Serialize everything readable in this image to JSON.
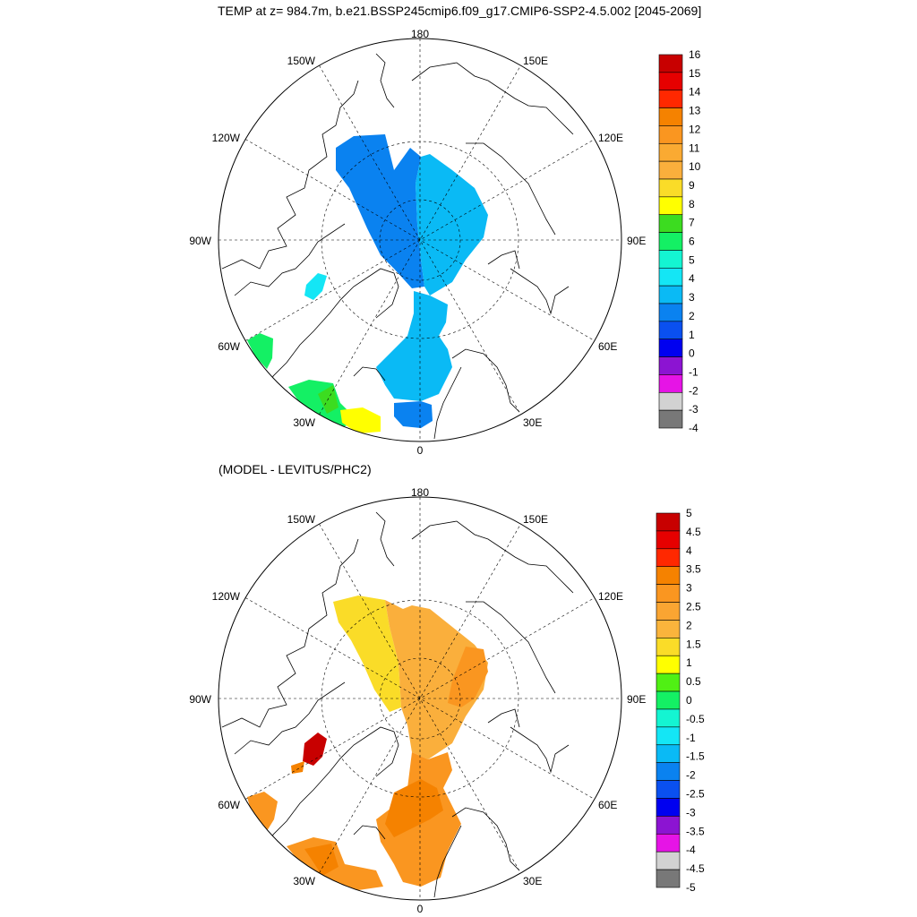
{
  "title": "TEMP at z= 984.7m, b.e21.BSSP245cmip6.f09_g17.CMIP6-SSP2-4.5.002 [2045-2069]",
  "subtitle": "(MODEL - LEVITUS/PHC2)",
  "longitude_labels": {
    "top": "180",
    "bottom": "0",
    "left": "90W",
    "right": "90E",
    "upper_left_outer": "150W",
    "upper_left_inner": "120W",
    "lower_left_inner": "60W",
    "lower_left_outer": "30W",
    "upper_right_outer": "150E",
    "upper_right_inner": "120E",
    "lower_right_inner": "60E",
    "lower_right_outer": "30E"
  },
  "colors": {
    "land_outline": "#000000",
    "grid": "#000000"
  },
  "panels": [
    {
      "name": "temperature-map",
      "colorbar": {
        "labels": [
          "16",
          "15",
          "14",
          "13",
          "12",
          "11",
          "10",
          "9",
          "8",
          "7",
          "6",
          "5",
          "4",
          "3",
          "2",
          "1",
          "0",
          "-1",
          "-2",
          "-3",
          "-4"
        ],
        "colors": [
          "#c80000",
          "#e60000",
          "#ff2800",
          "#f58200",
          "#fa9620",
          "#fa aa32",
          "#faaf3c",
          "#fadc28",
          "#ffff00",
          "#3cdc20",
          "#14f064",
          "#14f5d2",
          "#14e6f5",
          "#0abaf5",
          "#0a82f0",
          "#0a50f0",
          "#0000f0",
          "#8c14d2",
          "#e614e6",
          "#d2d2d2",
          "#787878"
        ]
      }
    },
    {
      "name": "difference-map",
      "colorbar": {
        "labels": [
          "5",
          "4.5",
          "4",
          "3.5",
          "3",
          "2.5",
          "2",
          "1.5",
          "1",
          "0.5",
          "0",
          "-0.5",
          "-1",
          "-1.5",
          "-2",
          "-2.5",
          "-3",
          "-3.5",
          "-4",
          "-4.5",
          "-5"
        ],
        "colors": [
          "#c80000",
          "#e60000",
          "#ff2800",
          "#f58200",
          "#fa9620",
          "#faa532",
          "#fab43c",
          "#fadc28",
          "#ffff00",
          "#50f014",
          "#14f064",
          "#14f5d2",
          "#14e6f5",
          "#0abaf5",
          "#0a82f0",
          "#0a50f0",
          "#0000f0",
          "#8c14d2",
          "#e614e6",
          "#d2d2d2",
          "#787878"
        ]
      }
    }
  ]
}
